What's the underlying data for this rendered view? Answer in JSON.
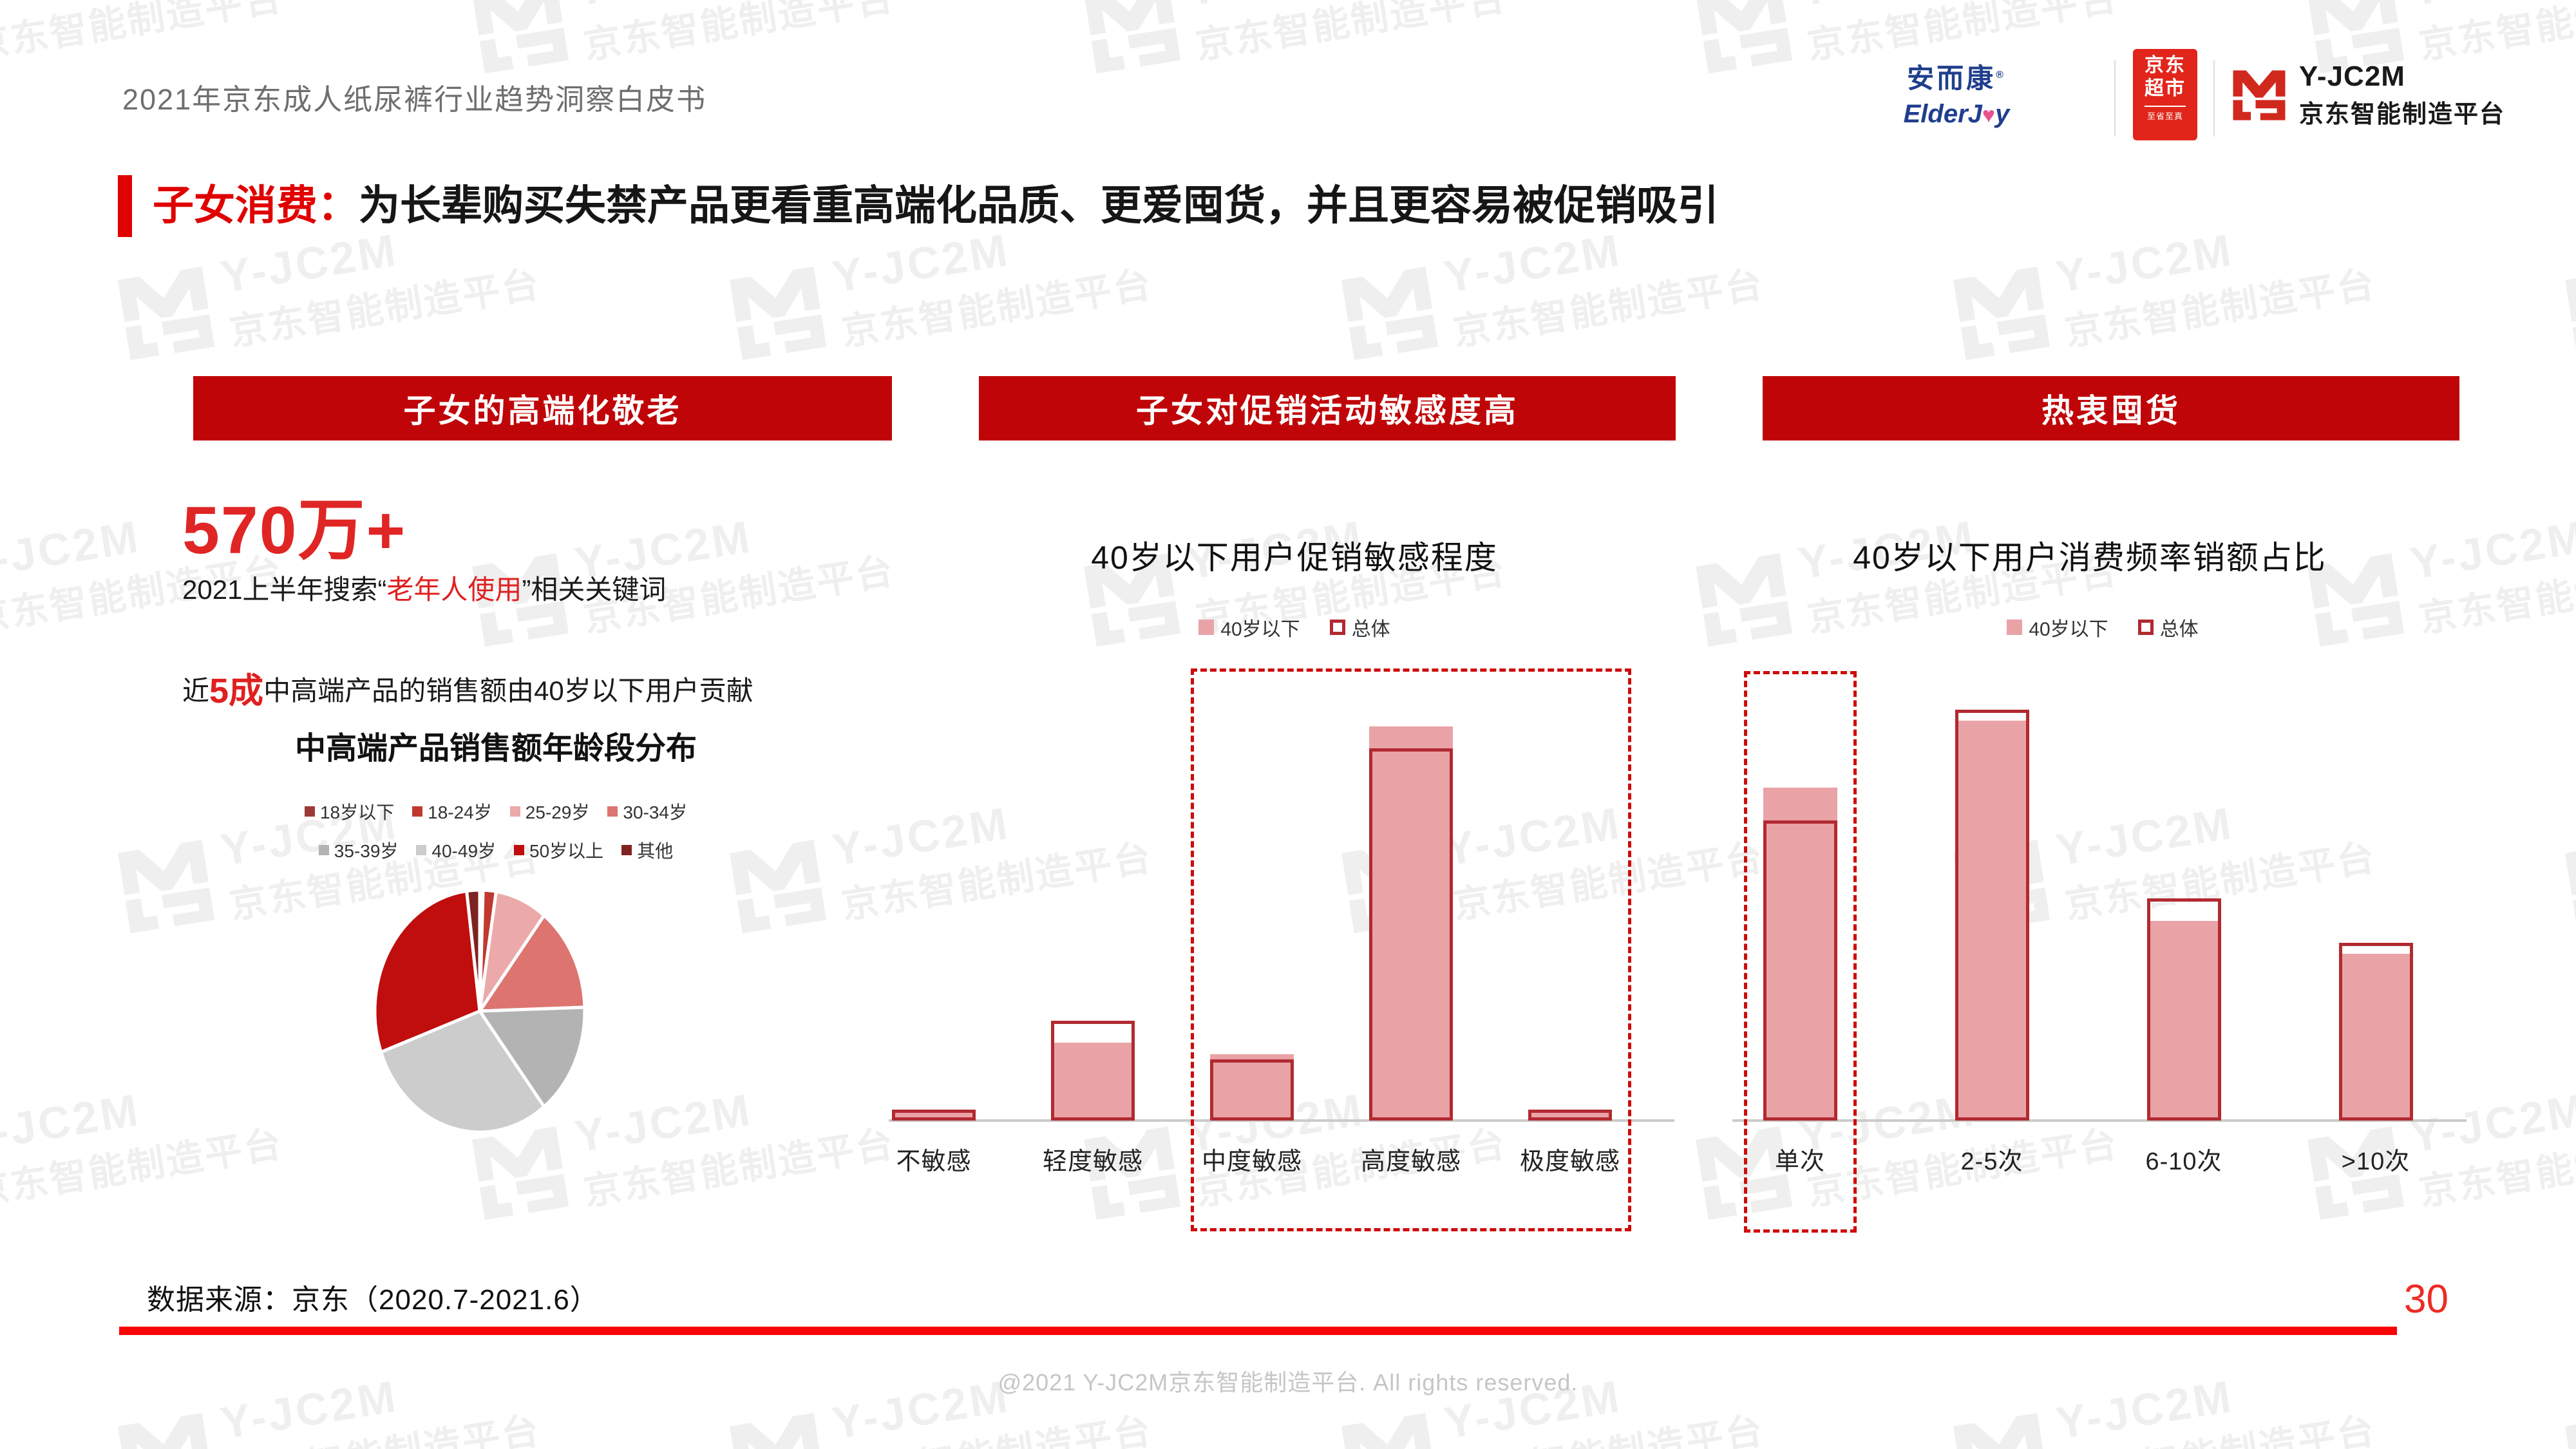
{
  "page": {
    "doc_title": "2021年京东成人纸尿裤行业趋势洞察白皮书",
    "headline": {
      "prefix": "子女消费：",
      "text": "为长辈购买失禁产品更看重高端化品质、更爱囤货，并且更容易被促销吸引"
    },
    "source_note": "数据来源：京东（2020.7-2021.6）",
    "page_number": "30",
    "footer_copyright": "@2021 Y-JC2M京东智能制造平台. All rights reserved.",
    "watermark": {
      "brand": "Y-JC2M",
      "brand_cn": "京东智能制造平台"
    }
  },
  "logos": {
    "elderjoy": {
      "cn": "安而康",
      "reg": "®",
      "en_left": "ElderJ",
      "heart": "♥",
      "en_right": "y"
    },
    "jd_market": {
      "line1": "京东",
      "line2": "超市",
      "slogan": "至省至真"
    },
    "jc2m": {
      "name": "Y-JC2M",
      "cn": "京东智能制造平台"
    }
  },
  "sections": {
    "banners": [
      "子女的高端化敬老",
      "子女对促销活动敏感度高",
      "热衷囤货"
    ]
  },
  "left_panel": {
    "big_stat": "570万+",
    "search_line": {
      "pre": "2021上半年搜索“",
      "highlight": "老年人使用",
      "post": "”相关关键词"
    },
    "contrib_line": {
      "pre": "近",
      "highlight": "5成",
      "post": "中高端产品的销售额由40岁以下用户贡献"
    }
  },
  "chart_data": [
    {
      "id": "age-distribution-pie",
      "type": "pie",
      "title": "中高端产品销售额年龄段分布",
      "legend_position": "top",
      "slices": [
        {
          "label": "18岁以下",
          "value": 0.5,
          "color": "#9C3A38"
        },
        {
          "label": "18-24岁",
          "value": 2,
          "color": "#C0392F"
        },
        {
          "label": "25-29岁",
          "value": 8,
          "color": "#EBA9A9"
        },
        {
          "label": "30-34岁",
          "value": 14,
          "color": "#DD7470"
        },
        {
          "label": "35-39岁",
          "value": 15,
          "color": "#B3B3B3"
        },
        {
          "label": "40-49岁",
          "value": 30,
          "color": "#CCCCCC"
        },
        {
          "label": "50岁以上",
          "value": 28.5,
          "color": "#C00D0D"
        },
        {
          "label": "其他",
          "value": 2,
          "color": "#7E2222"
        }
      ]
    },
    {
      "id": "promo-sensitivity-bar",
      "type": "bar",
      "title": "40岁以下用户促销敏感程度",
      "categories": [
        "不敏感",
        "轻度敏感",
        "中度敏感",
        "高度敏感",
        "极度敏感"
      ],
      "series": [
        {
          "name": "40岁以下",
          "style": "filled",
          "values": [
            1.5,
            14,
            12,
            71,
            2
          ]
        },
        {
          "name": "总体",
          "style": "outline",
          "values": [
            2,
            18,
            11,
            67,
            2
          ]
        }
      ],
      "ylim": [
        0,
        80
      ],
      "grid": false,
      "axis_labels_hidden": true,
      "fill_color": "#E9A3A7",
      "outline_color": "#B22A31",
      "highlight_box_categories": [
        "中度敏感",
        "高度敏感",
        "极度敏感"
      ]
    },
    {
      "id": "purchase-frequency-bar",
      "type": "bar",
      "title": "40岁以下用户消费频率销额占比",
      "categories": [
        "单次",
        "2-5次",
        "6-10次",
        ">10次"
      ],
      "series": [
        {
          "name": "40岁以下",
          "style": "filled",
          "values": [
            30,
            36,
            18,
            15
          ]
        },
        {
          "name": "总体",
          "style": "outline",
          "values": [
            27,
            37,
            20,
            16
          ]
        }
      ],
      "ylim": [
        0,
        40
      ],
      "grid": false,
      "axis_labels_hidden": true,
      "fill_color": "#E9A3A7",
      "outline_color": "#B22A31",
      "highlight_box_categories": [
        "单次"
      ]
    }
  ]
}
